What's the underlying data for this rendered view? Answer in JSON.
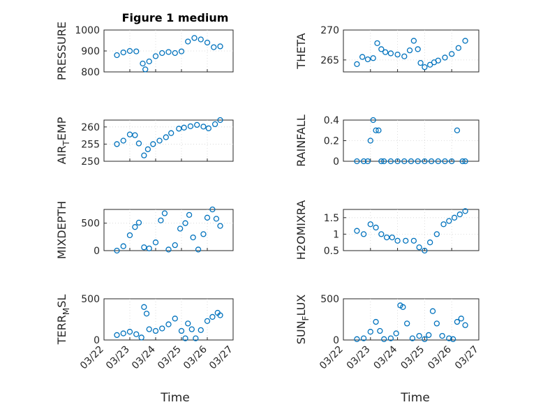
{
  "figure": {
    "title": "Figure 1 medium",
    "xlabel": "Time",
    "accent_color": "#0072bd"
  },
  "chart_data": [
    {
      "type": "scatter",
      "title": "Figure 1 medium",
      "ylabel": "PRESSURE",
      "ylim": [
        800,
        1000
      ],
      "yticks": [
        800,
        900,
        1000
      ],
      "grid": true,
      "series": [
        {
          "x": [
            22.5,
            22.75,
            23.0,
            23.25,
            23.5,
            23.6,
            23.75,
            24.0,
            24.25,
            24.5,
            24.75,
            25.0,
            25.25,
            25.5,
            25.75,
            26.0,
            26.25,
            26.5
          ],
          "y": [
            880,
            893,
            900,
            898,
            840,
            812,
            850,
            875,
            890,
            895,
            890,
            898,
            945,
            962,
            955,
            940,
            918,
            922
          ]
        }
      ]
    },
    {
      "type": "scatter",
      "ylabel": "THETA",
      "ylim": [
        263,
        270
      ],
      "yticks": [
        265,
        270
      ],
      "grid": true,
      "series": [
        {
          "x": [
            22.5,
            22.7,
            22.9,
            23.1,
            23.25,
            23.4,
            23.55,
            23.75,
            24.0,
            24.25,
            24.45,
            24.6,
            24.75,
            24.85,
            25.0,
            25.2,
            25.35,
            25.5,
            25.75,
            26.0,
            26.25,
            26.5
          ],
          "y": [
            264.3,
            265.5,
            265.1,
            265.3,
            267.8,
            266.8,
            266.3,
            266.1,
            265.9,
            265.6,
            266.6,
            268.2,
            266.8,
            264.5,
            263.8,
            264.2,
            264.6,
            264.9,
            265.4,
            266.0,
            267.0,
            268.2
          ]
        }
      ]
    },
    {
      "type": "scatter",
      "ylabel": "AIR_T_EMP",
      "ylim": [
        250,
        262
      ],
      "yticks": [
        250,
        255,
        260
      ],
      "grid": true,
      "series": [
        {
          "x": [
            22.5,
            22.75,
            23.0,
            23.2,
            23.35,
            23.55,
            23.7,
            23.9,
            24.15,
            24.4,
            24.6,
            24.9,
            25.1,
            25.35,
            25.6,
            25.85,
            26.05,
            26.3,
            26.5
          ],
          "y": [
            255.0,
            256.0,
            257.8,
            257.6,
            255.2,
            251.7,
            253.5,
            255.0,
            256.0,
            257.0,
            258.2,
            259.5,
            259.8,
            260.2,
            260.6,
            260.1,
            259.6,
            260.8,
            262.0
          ]
        }
      ]
    },
    {
      "type": "scatter",
      "ylabel": "RAINFALL",
      "ylim": [
        0,
        0.4
      ],
      "yticks": [
        0,
        0.2,
        0.4
      ],
      "grid": true,
      "series": [
        {
          "x": [
            22.5,
            22.75,
            22.9,
            23.0,
            23.1,
            23.2,
            23.3,
            23.4,
            23.5,
            23.75,
            24.0,
            24.25,
            24.5,
            24.75,
            25.0,
            25.25,
            25.5,
            25.75,
            26.0,
            26.2,
            26.4,
            26.5
          ],
          "y": [
            0,
            0,
            0,
            0.2,
            0.4,
            0.3,
            0.3,
            0,
            0,
            0,
            0,
            0,
            0,
            0,
            0,
            0,
            0,
            0,
            0,
            0.3,
            0,
            0
          ]
        }
      ]
    },
    {
      "type": "scatter",
      "ylabel": "MIXDEPTH",
      "ylim": [
        0,
        750
      ],
      "yticks": [
        0,
        500
      ],
      "grid": true,
      "series": [
        {
          "x": [
            22.5,
            22.75,
            23.0,
            23.2,
            23.35,
            23.55,
            23.75,
            24.0,
            24.2,
            24.35,
            24.5,
            24.75,
            24.95,
            25.15,
            25.3,
            25.45,
            25.65,
            25.85,
            26.0,
            26.2,
            26.35,
            26.5
          ],
          "y": [
            0,
            80,
            280,
            430,
            510,
            60,
            40,
            150,
            550,
            680,
            20,
            100,
            400,
            500,
            650,
            240,
            20,
            300,
            600,
            750,
            580,
            450
          ]
        }
      ]
    },
    {
      "type": "scatter",
      "ylabel": "H2OMIXRA",
      "ylim": [
        0.5,
        1.75
      ],
      "yticks": [
        0.5,
        1,
        1.5
      ],
      "grid": true,
      "series": [
        {
          "x": [
            22.5,
            22.75,
            23.0,
            23.2,
            23.4,
            23.6,
            23.8,
            24.0,
            24.3,
            24.6,
            24.8,
            25.0,
            25.2,
            25.45,
            25.7,
            25.9,
            26.1,
            26.3,
            26.5
          ],
          "y": [
            1.1,
            1.0,
            1.3,
            1.2,
            1.0,
            0.9,
            0.9,
            0.8,
            0.8,
            0.8,
            0.6,
            0.5,
            0.75,
            1.0,
            1.3,
            1.4,
            1.5,
            1.6,
            1.7
          ]
        }
      ]
    },
    {
      "type": "scatter",
      "ylabel": "TERR_M_SL",
      "ylim": [
        0,
        500
      ],
      "yticks": [
        0,
        500
      ],
      "grid": true,
      "series": [
        {
          "x": [
            22.5,
            22.75,
            23.0,
            23.25,
            23.45,
            23.55,
            23.65,
            23.75,
            24.0,
            24.25,
            24.5,
            24.75,
            25.0,
            25.15,
            25.25,
            25.4,
            25.55,
            25.75,
            26.0,
            26.2,
            26.4,
            26.5
          ],
          "y": [
            60,
            80,
            100,
            70,
            30,
            400,
            320,
            130,
            110,
            140,
            190,
            260,
            110,
            20,
            200,
            130,
            20,
            120,
            230,
            280,
            330,
            300
          ]
        }
      ]
    },
    {
      "type": "scatter",
      "ylabel": "SUN_F_LUX",
      "ylim": [
        0,
        500
      ],
      "yticks": [
        0,
        500
      ],
      "grid": true,
      "series": [
        {
          "x": [
            22.5,
            22.75,
            23.0,
            23.2,
            23.35,
            23.5,
            23.75,
            23.95,
            24.1,
            24.2,
            24.35,
            24.55,
            24.8,
            25.0,
            25.15,
            25.3,
            25.45,
            25.65,
            25.9,
            26.05,
            26.2,
            26.35,
            26.5
          ],
          "y": [
            10,
            20,
            100,
            220,
            110,
            10,
            20,
            80,
            420,
            400,
            200,
            20,
            50,
            10,
            60,
            350,
            200,
            50,
            20,
            10,
            220,
            260,
            180
          ]
        }
      ]
    }
  ],
  "x_axis": {
    "tick_labels": [
      "03/22",
      "03/23",
      "03/24",
      "03/25",
      "03/26",
      "03/27"
    ],
    "tick_values": [
      22,
      23,
      24,
      25,
      26,
      27
    ],
    "range": [
      22,
      27
    ]
  }
}
